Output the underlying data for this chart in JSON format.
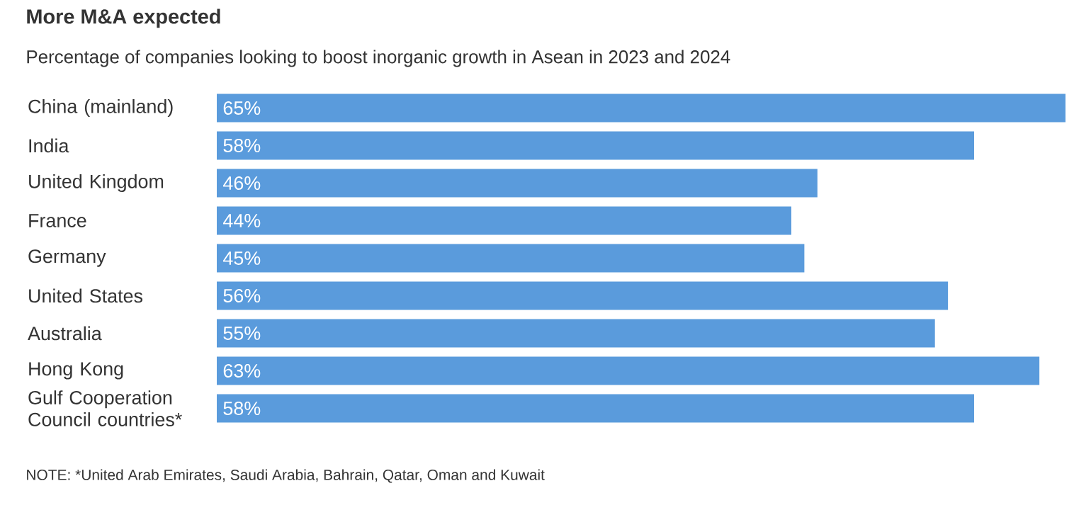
{
  "chart_data": {
    "type": "bar",
    "orientation": "horizontal",
    "title": "More M&A expected",
    "subtitle": "Percentage of companies looking to boost inorganic growth in Asean in 2023 and 2024",
    "categories": [
      "China (mainland)",
      "India",
      "United Kingdom",
      "France",
      "Germany",
      "United States",
      "Australia",
      "Hong Kong",
      "Gulf Cooperation Council countries*"
    ],
    "values": [
      65,
      58,
      46,
      44,
      45,
      56,
      55,
      63,
      58
    ],
    "value_labels": [
      "65%",
      "58%",
      "46%",
      "44%",
      "45%",
      "56%",
      "55%",
      "63%",
      "58%"
    ],
    "color": "#5a9bdc",
    "annotations": [
      "NOTE: *United Arab Emirates, Saudi Arabia, Bahrain, Qatar, Oman and Kuwait"
    ]
  }
}
